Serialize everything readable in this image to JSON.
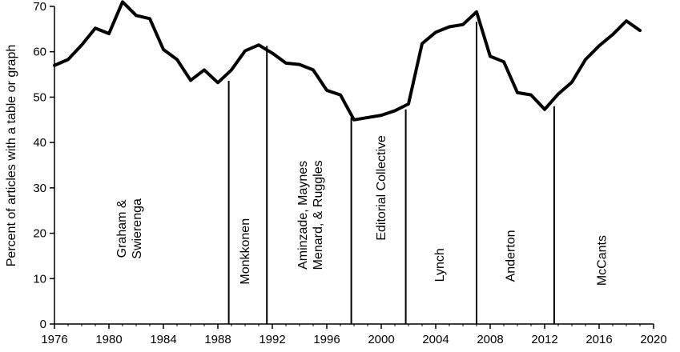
{
  "chart_data": {
    "type": "line",
    "title": "",
    "xlabel": "",
    "ylabel": "Percent of articles with a table or graph",
    "xlim": [
      1976,
      2020
    ],
    "ylim": [
      0,
      70
    ],
    "x_ticks": [
      1976,
      1980,
      1984,
      1988,
      1992,
      1996,
      2000,
      2004,
      2008,
      2012,
      2016,
      2020
    ],
    "y_ticks": [
      0,
      10,
      20,
      30,
      40,
      50,
      60,
      70
    ],
    "grid": false,
    "legend": "none",
    "line_color": "#000000",
    "series": [
      {
        "x": [
          1976,
          1977,
          1978,
          1979,
          1980,
          1981,
          1982,
          1983,
          1984,
          1985,
          1986,
          1987,
          1988,
          1989,
          1990,
          1991,
          1992,
          1993,
          1994,
          1995,
          1996,
          1997,
          1998,
          1999,
          2000,
          2001,
          2002,
          2003,
          2004,
          2005,
          2006,
          2007,
          2008,
          2009,
          2010,
          2011,
          2012,
          2013,
          2014,
          2015,
          2016,
          2017,
          2018,
          2019
        ],
        "values": [
          57,
          58.3,
          61.5,
          65.2,
          64,
          71,
          68,
          67.3,
          60.5,
          58.3,
          53.7,
          56,
          53.2,
          56,
          60.2,
          61.5,
          59.7,
          57.5,
          57.2,
          56,
          51.5,
          50.5,
          45,
          45.5,
          46,
          47,
          48.5,
          61.8,
          64.3,
          65.5,
          66,
          68.8,
          59,
          57.8,
          51,
          50.5,
          47.3,
          50.7,
          53.3,
          58.3,
          61.3,
          63.8,
          66.8,
          64.7
        ]
      }
    ],
    "eras": [
      {
        "label_lines": [
          "Graham &",
          "Swierenga"
        ],
        "label_x": 1981.5,
        "label_y": 21,
        "boundary_year": 1988.8,
        "boundary_value": 53.6
      },
      {
        "label_lines": [
          "Monkkonen"
        ],
        "label_x": 1990,
        "label_y": 16,
        "boundary_year": 1991.6,
        "boundary_value": 61.3
      },
      {
        "label_lines": [
          "Aminzade, Maynes",
          "Menard, & Ruggles"
        ],
        "label_x": 1994.8,
        "label_y": 24,
        "boundary_year": 1997.8,
        "boundary_value": 45.5
      },
      {
        "label_lines": [
          "Editorial Collective"
        ],
        "label_x": 2000,
        "label_y": 30,
        "boundary_year": 2001.8,
        "boundary_value": 47.3
      },
      {
        "label_lines": [
          "Lynch"
        ],
        "label_x": 2004.3,
        "label_y": 13,
        "boundary_year": 2007,
        "boundary_value": 66.6
      },
      {
        "label_lines": [
          "Anderton"
        ],
        "label_x": 2009.5,
        "label_y": 15,
        "boundary_year": 2012.7,
        "boundary_value": 48
      },
      {
        "label_lines": [
          "McCants"
        ],
        "label_x": 2016.2,
        "label_y": 14,
        "boundary_year": null,
        "boundary_value": null
      }
    ]
  }
}
